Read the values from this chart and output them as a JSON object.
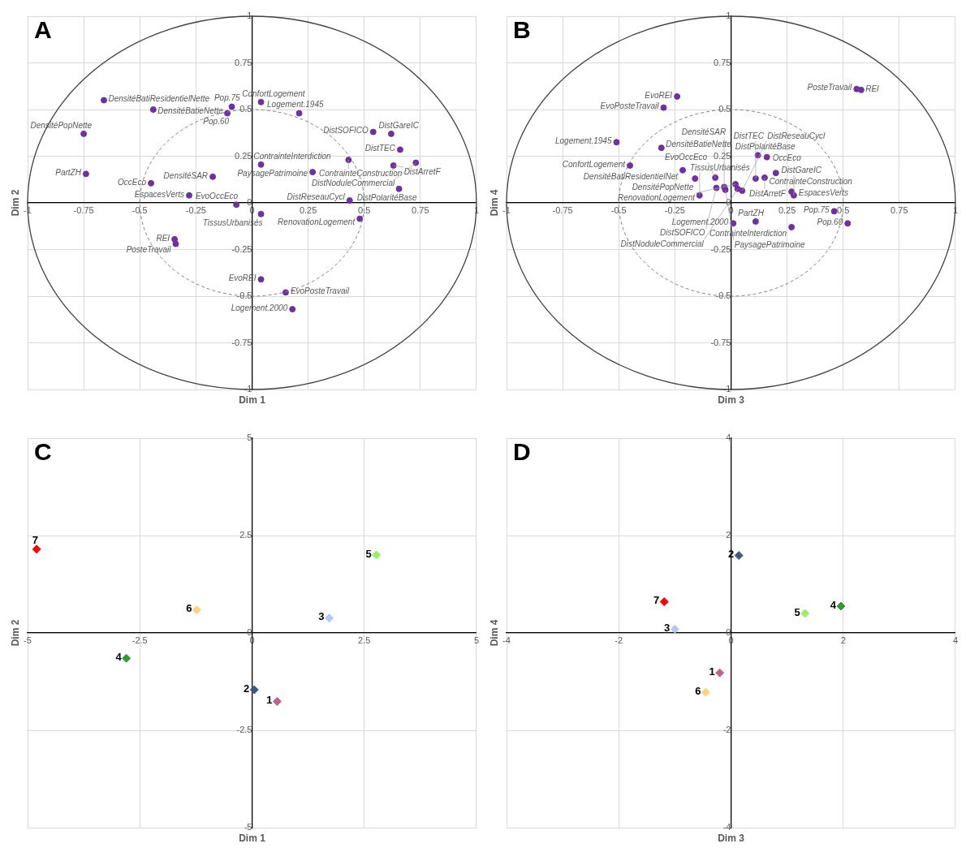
{
  "chart_data": [
    {
      "type": "scatter",
      "title": "A",
      "xlabel": "Dim 1",
      "ylabel": "Dim 2",
      "xlim": [
        -1,
        1
      ],
      "ylim": [
        -1,
        1
      ],
      "xticks": [
        -1,
        -0.75,
        -0.5,
        -0.25,
        0,
        0.25,
        0.5,
        0.75,
        1
      ],
      "yticks": [
        -1,
        -0.75,
        -0.5,
        -0.25,
        0,
        0.25,
        0.5,
        0.75,
        1
      ],
      "grid": true,
      "marker": "circle",
      "color": "#7030a0",
      "x": [
        -0.66,
        -0.44,
        -0.75,
        -0.74,
        -0.45,
        -0.175,
        -0.28,
        0.04,
        -0.07,
        -0.345,
        -0.34,
        -0.09,
        -0.11,
        0.04,
        0.21,
        0.04,
        0.27,
        0.43,
        0.54,
        0.62,
        0.66,
        0.63,
        0.73,
        0.655,
        0.435,
        0.48,
        0.04,
        0.15,
        0.18
      ],
      "values": [
        0.55,
        0.5,
        0.37,
        0.155,
        0.105,
        0.14,
        0.04,
        -0.06,
        -0.01,
        -0.195,
        -0.22,
        0.515,
        0.48,
        0.54,
        0.48,
        0.205,
        0.165,
        0.23,
        0.38,
        0.37,
        0.285,
        0.2,
        0.215,
        0.075,
        0.013,
        -0.085,
        -0.41,
        -0.48,
        -0.57
      ],
      "value_labels": [
        "DensitéBatiResidentielNette",
        "DensitéBatieNette",
        "DensitéPopNette",
        "PartZH",
        "OccEco",
        "DensitéSAR",
        "EspacesVerts",
        "TissusUrbanisés",
        "EvoOccEco",
        "REI",
        "PosteTravail",
        "Pop.75",
        "Pop.60",
        "ConfortLogement",
        "Logement.1945",
        "ContrainteInterdiction",
        "PaysagePatrimoine",
        "ContrainteConstruction",
        "DistSOFICO",
        "DistGareIC",
        "DistTEC",
        "DistArretF",
        "DistNoduleCommercial",
        "DistPolaritéBase",
        "DistReseauCycl",
        "RenovationLogement",
        "EvoREI",
        "EvoPosteTravail",
        "Logement.2000"
      ]
    },
    {
      "type": "scatter",
      "title": "B",
      "xlabel": "Dim 3",
      "ylabel": "Dim 4",
      "xlim": [
        -1,
        1
      ],
      "ylim": [
        -1,
        1
      ],
      "xticks": [
        -1,
        -0.75,
        -0.5,
        -0.25,
        0,
        0.25,
        0.5,
        0.75,
        1
      ],
      "yticks": [
        -1,
        -0.75,
        -0.5,
        -0.25,
        0,
        0.25,
        0.5,
        0.75,
        1
      ],
      "grid": true,
      "marker": "circle",
      "color": "#7030a0",
      "x": [
        0.56,
        0.58,
        -0.24,
        -0.3,
        -0.51,
        -0.31,
        -0.45,
        -0.215,
        -0.16,
        -0.14,
        0.01,
        0.11,
        0.27,
        0.46,
        0.52,
        0.12,
        0.16,
        0.2,
        0.27,
        0.28,
        -0.07,
        0.15,
        0.11,
        0.02,
        -0.065,
        -0.03,
        -0.025,
        0.05,
        0.03
      ],
      "values": [
        0.61,
        0.605,
        0.57,
        0.51,
        0.325,
        0.295,
        0.2,
        0.175,
        0.13,
        0.04,
        -0.11,
        -0.1,
        -0.13,
        -0.045,
        -0.11,
        0.255,
        0.245,
        0.16,
        0.06,
        0.04,
        0.135,
        0.135,
        0.13,
        0.1,
        0.08,
        0.085,
        0.07,
        0.065,
        0.075
      ],
      "value_labels": [
        "PosteTravail",
        "REI",
        "EvoREI",
        "EvoPosteTravail",
        "Logement.1945",
        "DensitéBatieNette",
        "ConfortLogement",
        "DensitéBatiResidentielNet",
        "DensitéPopNette",
        "TissusUrbanisés",
        "Logement.2000",
        "PartZH",
        "ContrainteInterdiction",
        "Pop.75",
        "Pop.60",
        "DistPolaritéBase",
        "OccEco",
        "ContrainteConstruction",
        "EspacesVerts",
        "DistGareIC",
        "EvoOccEco",
        "DistArretF",
        "DistTEC",
        "RenovationLogement",
        "DistSOFICO",
        "DensitéSAR",
        "PaysagePatrimoine",
        "DistReseauCycl",
        "DistNoduleCommercial"
      ]
    },
    {
      "type": "scatter",
      "title": "C",
      "xlabel": "Dim 1",
      "ylabel": "Dim 2",
      "xlim": [
        -5,
        5
      ],
      "ylim": [
        -5,
        5
      ],
      "xticks": [
        -5,
        -2.5,
        0,
        2.5,
        5
      ],
      "yticks": [
        -5,
        -2.5,
        0,
        2.5,
        5
      ],
      "grid": true,
      "marker": "diamond",
      "series": [
        {
          "name": "7",
          "color": "#ff0000",
          "x": [
            -4.8
          ],
          "values": [
            2.15
          ]
        },
        {
          "name": "6",
          "color": "#ffd280",
          "x": [
            -1.23
          ],
          "values": [
            0.59
          ]
        },
        {
          "name": "4",
          "color": "#339933",
          "x": [
            -2.8
          ],
          "values": [
            -0.65
          ]
        },
        {
          "name": "5",
          "color": "#99ee66",
          "x": [
            2.77
          ],
          "values": [
            2.0
          ]
        },
        {
          "name": "3",
          "color": "#b4c8f0",
          "x": [
            1.72
          ],
          "values": [
            0.38
          ]
        },
        {
          "name": "2",
          "color": "#3c5a7a",
          "x": [
            0.05
          ],
          "values": [
            -1.46
          ]
        },
        {
          "name": "1",
          "color": "#c06090",
          "x": [
            0.56
          ],
          "values": [
            -1.76
          ]
        }
      ]
    },
    {
      "type": "scatter",
      "title": "D",
      "xlabel": "Dim 3",
      "ylabel": "Dim 4",
      "xlim": [
        -4,
        4
      ],
      "ylim": [
        -4,
        4
      ],
      "xticks": [
        -4,
        -2,
        0,
        2,
        4
      ],
      "yticks": [
        -4,
        -2,
        0,
        2,
        4
      ],
      "grid": true,
      "marker": "diamond",
      "series": [
        {
          "name": "2",
          "color": "#3c5a7a",
          "x": [
            0.14
          ],
          "values": [
            1.59
          ]
        },
        {
          "name": "7",
          "color": "#ff0000",
          "x": [
            -1.19
          ],
          "values": [
            0.64
          ]
        },
        {
          "name": "3",
          "color": "#b4c8f0",
          "x": [
            -1.0
          ],
          "values": [
            0.08
          ]
        },
        {
          "name": "5",
          "color": "#99ee66",
          "x": [
            1.32
          ],
          "values": [
            0.4
          ]
        },
        {
          "name": "4",
          "color": "#339933",
          "x": [
            1.96
          ],
          "values": [
            0.55
          ]
        },
        {
          "name": "1",
          "color": "#c06090",
          "x": [
            -0.2
          ],
          "values": [
            -0.82
          ]
        },
        {
          "name": "6",
          "color": "#ffd280",
          "x": [
            -0.45
          ],
          "values": [
            -1.22
          ]
        }
      ]
    }
  ]
}
